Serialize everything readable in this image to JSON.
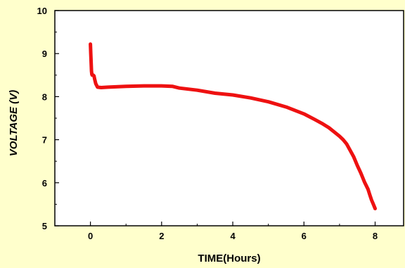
{
  "chart_data": {
    "type": "line",
    "title": "",
    "xlabel": "TIME(Hours)",
    "ylabel": "VOLTAGE (V)",
    "xlim": [
      -1,
      8.8
    ],
    "ylim": [
      5,
      10
    ],
    "x_ticks": [
      0,
      2,
      4,
      6,
      8
    ],
    "y_ticks": [
      5,
      6,
      7,
      8,
      9,
      10
    ],
    "grid": false,
    "legend": "none",
    "colors": {
      "line": "#ee1111",
      "background": "#ffffcc",
      "plot_background": "#ffffff",
      "axis": "#000000"
    },
    "series": [
      {
        "x": [
          0,
          0.01,
          0.02,
          0.03,
          0.04,
          0.05,
          0.08,
          0.1,
          0.12,
          0.15,
          0.2,
          0.3,
          0.5,
          1.0,
          1.5,
          2.0,
          2.3,
          2.5,
          3.0,
          3.5,
          4.0,
          4.5,
          5.0,
          5.5,
          6.0,
          6.3,
          6.5,
          6.7,
          6.85,
          7.0,
          7.1,
          7.2,
          7.3,
          7.4,
          7.5,
          7.6,
          7.7,
          7.8,
          7.85,
          7.9,
          7.95,
          8.0
        ],
        "y": [
          9.22,
          9.0,
          8.8,
          8.6,
          8.52,
          8.5,
          8.5,
          8.48,
          8.4,
          8.3,
          8.22,
          8.21,
          8.22,
          8.24,
          8.25,
          8.25,
          8.24,
          8.2,
          8.15,
          8.08,
          8.04,
          7.97,
          7.88,
          7.76,
          7.6,
          7.47,
          7.38,
          7.28,
          7.18,
          7.08,
          7.0,
          6.9,
          6.75,
          6.6,
          6.4,
          6.22,
          6.02,
          5.85,
          5.72,
          5.6,
          5.5,
          5.4
        ]
      }
    ]
  }
}
